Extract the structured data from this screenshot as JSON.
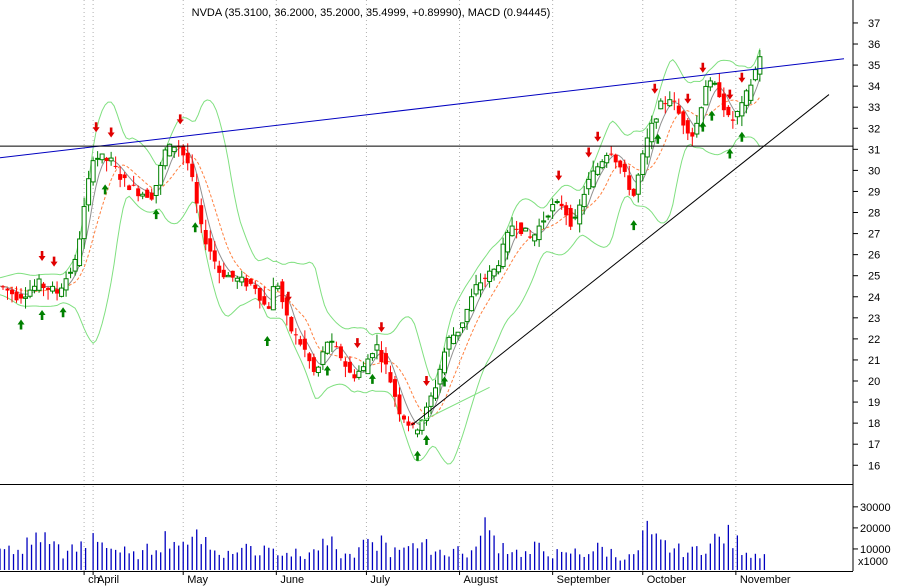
{
  "chart_data": {
    "type": "candlestick",
    "title": "NVDA (35.3100, 36.2000, 35.2000, 35.4999, +0.89990), MACD (0.94445)",
    "price_axis": {
      "min": 15.3,
      "max": 37.9,
      "ticks": [
        16,
        17,
        18,
        19,
        20,
        21,
        22,
        23,
        24,
        25,
        26,
        27,
        28,
        29,
        30,
        31,
        32,
        33,
        34,
        35,
        36,
        37
      ]
    },
    "volume_axis": {
      "ticks": [
        10000,
        20000,
        30000
      ],
      "tick_labels": [
        "10000",
        "20000",
        "30000"
      ],
      "unit_label": "x1000",
      "max": 38000
    },
    "months": [
      {
        "label": "ch",
        "day": -3
      },
      {
        "label": "April",
        "day": 0
      },
      {
        "label": "May",
        "day": 30
      },
      {
        "label": "June",
        "day": 61
      },
      {
        "label": "July",
        "day": 91
      },
      {
        "label": "August",
        "day": 122
      },
      {
        "label": "September",
        "day": 153
      },
      {
        "label": "October",
        "day": 183
      },
      {
        "label": "November",
        "day": 214
      }
    ],
    "x_range_days": [
      -31,
      253
    ],
    "grid": true,
    "colors": {
      "up": "#008000",
      "down": "#ff0000",
      "bollinger": "#80e080",
      "ema": "#ff8040",
      "sma": "#909090",
      "trendline_upper": "#0000c0",
      "trendline_lower": "#000000",
      "buy_arrow": "#008000",
      "sell_arrow": "#e00000",
      "grid": "#b0b0b0"
    },
    "price_keypoints": [
      [
        -31,
        24.5
      ],
      [
        -25,
        24.0
      ],
      [
        -18,
        24.6
      ],
      [
        -12,
        24.2
      ],
      [
        -6,
        25.6
      ],
      [
        0,
        30.7
      ],
      [
        6,
        30.4
      ],
      [
        10,
        29.5
      ],
      [
        15,
        29.0
      ],
      [
        20,
        28.8
      ],
      [
        24,
        30.9
      ],
      [
        28,
        31.3
      ],
      [
        32,
        30.2
      ],
      [
        36,
        27.2
      ],
      [
        42,
        25.2
      ],
      [
        48,
        24.8
      ],
      [
        54,
        24.5
      ],
      [
        58,
        23.3
      ],
      [
        61,
        24.9
      ],
      [
        65,
        22.6
      ],
      [
        70,
        21.6
      ],
      [
        74,
        20.2
      ],
      [
        78,
        21.9
      ],
      [
        82,
        21.3
      ],
      [
        86,
        20.2
      ],
      [
        90,
        20.6
      ],
      [
        94,
        21.8
      ],
      [
        98,
        20.5
      ],
      [
        102,
        18.6
      ],
      [
        107,
        17.6
      ],
      [
        111,
        18.6
      ],
      [
        114,
        19.8
      ],
      [
        118,
        21.9
      ],
      [
        122,
        22.5
      ],
      [
        128,
        24.6
      ],
      [
        134,
        25.3
      ],
      [
        140,
        27.6
      ],
      [
        146,
        26.7
      ],
      [
        152,
        28.2
      ],
      [
        156,
        28.4
      ],
      [
        160,
        27.3
      ],
      [
        164,
        29.2
      ],
      [
        168,
        30.2
      ],
      [
        172,
        31.1
      ],
      [
        176,
        30.0
      ],
      [
        180,
        28.8
      ],
      [
        184,
        31.2
      ],
      [
        188,
        32.9
      ],
      [
        192,
        33.5
      ],
      [
        196,
        32.4
      ],
      [
        200,
        31.6
      ],
      [
        204,
        34.1
      ],
      [
        208,
        33.9
      ],
      [
        212,
        32.2
      ],
      [
        216,
        33.0
      ],
      [
        220,
        34.5
      ],
      [
        222,
        35.5
      ]
    ],
    "upper_trendline": [
      [
        -31,
        30.6
      ],
      [
        250,
        35.3
      ]
    ],
    "support_line_price": 31.15,
    "lower_trendline": [
      [
        106,
        17.9
      ],
      [
        245,
        33.6
      ]
    ],
    "short_line": [
      [
        108,
        18.0
      ],
      [
        132,
        19.7
      ]
    ],
    "buy_signals": [
      -24,
      -17,
      -10,
      4,
      21,
      34,
      58,
      78,
      93,
      108,
      111,
      117,
      180,
      188,
      203,
      206,
      212,
      216
    ],
    "sell_signals": [
      -17,
      -13,
      1,
      6,
      29,
      65,
      88,
      96,
      111,
      155,
      165,
      168,
      187,
      198,
      203,
      212,
      216
    ],
    "volume_sample": [
      [
        -31,
        10000
      ],
      [
        -28,
        12000
      ],
      [
        -25,
        9000
      ],
      [
        -22,
        15000
      ],
      [
        -19,
        20000
      ],
      [
        -16,
        17000
      ],
      [
        -13,
        14000
      ],
      [
        -10,
        9000
      ],
      [
        -7,
        11000
      ],
      [
        -4,
        13000
      ],
      [
        0,
        19000
      ],
      [
        3,
        16000
      ],
      [
        6,
        12000
      ],
      [
        9,
        10000
      ],
      [
        12,
        8000
      ],
      [
        15,
        9000
      ],
      [
        18,
        11000
      ],
      [
        21,
        15000
      ],
      [
        24,
        18000
      ],
      [
        27,
        16000
      ],
      [
        30,
        12000
      ],
      [
        33,
        26000
      ],
      [
        36,
        17000
      ],
      [
        39,
        11000
      ],
      [
        42,
        10000
      ],
      [
        45,
        9000
      ],
      [
        48,
        12000
      ],
      [
        51,
        13000
      ],
      [
        54,
        10000
      ],
      [
        57,
        15000
      ],
      [
        60,
        11000
      ],
      [
        63,
        12000
      ],
      [
        66,
        9000
      ],
      [
        69,
        8000
      ],
      [
        72,
        10000
      ],
      [
        75,
        13000
      ],
      [
        78,
        14000
      ],
      [
        81,
        9000
      ],
      [
        84,
        8000
      ],
      [
        87,
        10000
      ],
      [
        90,
        15000
      ],
      [
        93,
        12000
      ],
      [
        96,
        19000
      ],
      [
        99,
        10000
      ],
      [
        102,
        14000
      ],
      [
        105,
        17000
      ],
      [
        108,
        12000
      ],
      [
        111,
        13000
      ],
      [
        114,
        11000
      ],
      [
        117,
        10000
      ],
      [
        120,
        12000
      ],
      [
        123,
        9000
      ],
      [
        126,
        10000
      ],
      [
        129,
        27000
      ],
      [
        132,
        18000
      ],
      [
        135,
        14000
      ],
      [
        138,
        12000
      ],
      [
        141,
        10000
      ],
      [
        144,
        9000
      ],
      [
        147,
        12000
      ],
      [
        150,
        11000
      ],
      [
        153,
        9000
      ],
      [
        156,
        8000
      ],
      [
        159,
        10000
      ],
      [
        162,
        9000
      ],
      [
        165,
        11000
      ],
      [
        168,
        12000
      ],
      [
        171,
        10000
      ],
      [
        174,
        8000
      ],
      [
        177,
        7000
      ],
      [
        180,
        9000
      ],
      [
        183,
        21000
      ],
      [
        186,
        16000
      ],
      [
        189,
        14000
      ],
      [
        192,
        12000
      ],
      [
        195,
        11000
      ],
      [
        198,
        10000
      ],
      [
        201,
        12000
      ],
      [
        204,
        14000
      ],
      [
        207,
        17000
      ],
      [
        210,
        19000
      ],
      [
        213,
        15000
      ],
      [
        216,
        12000
      ],
      [
        219,
        9000
      ],
      [
        222,
        10000
      ]
    ]
  }
}
